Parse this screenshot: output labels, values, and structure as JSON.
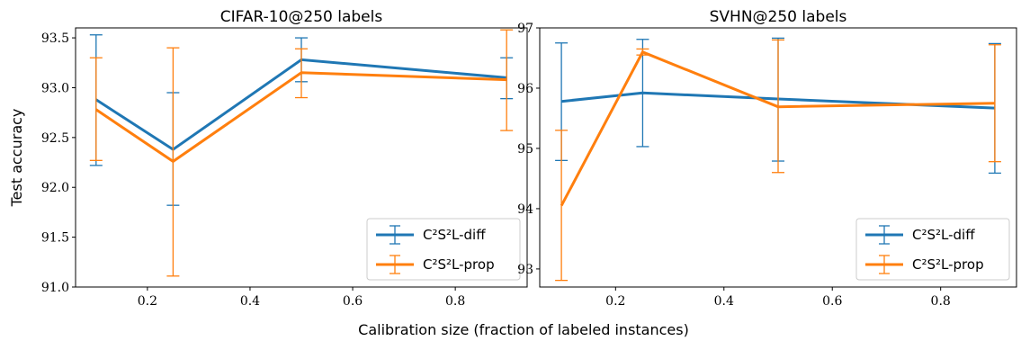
{
  "figure": {
    "xlabel": "Calibration size (fraction of labeled instances)",
    "ylabel": "Test accuracy"
  },
  "colors": {
    "diff": "#1f77b4",
    "prop": "#ff7f0e"
  },
  "chart_data": [
    {
      "type": "line",
      "title": "CIFAR-10@250 labels",
      "ylabel": "Test accuracy",
      "xlim": [
        0.06,
        0.94
      ],
      "ylim": [
        91.0,
        93.6
      ],
      "xticks": [
        0.2,
        0.4,
        0.6,
        0.8
      ],
      "xtick_labels": [
        "0.2",
        "0.4",
        "0.6",
        "0.8"
      ],
      "yticks": [
        91.0,
        91.5,
        92.0,
        92.5,
        93.0,
        93.5
      ],
      "ytick_labels": [
        "91.0",
        "91.5",
        "92.0",
        "92.5",
        "93.0",
        "93.5"
      ],
      "legend": "lower-right",
      "series": [
        {
          "name": "C²S²L-diff",
          "color": "#1f77b4",
          "x": [
            0.1,
            0.25,
            0.5,
            0.9
          ],
          "y": [
            92.88,
            92.38,
            93.28,
            93.1
          ],
          "err_low": [
            92.22,
            91.82,
            93.06,
            92.89
          ],
          "err_high": [
            93.53,
            92.95,
            93.5,
            93.3
          ]
        },
        {
          "name": "C²S²L-prop",
          "color": "#ff7f0e",
          "x": [
            0.1,
            0.25,
            0.5,
            0.9
          ],
          "y": [
            92.78,
            92.26,
            93.15,
            93.08
          ],
          "err_low": [
            92.27,
            91.11,
            92.9,
            92.57
          ],
          "err_high": [
            93.3,
            93.4,
            93.39,
            93.58
          ]
        }
      ]
    },
    {
      "type": "line",
      "title": "SVHN@250 labels",
      "xlim": [
        0.06,
        0.94
      ],
      "ylim": [
        92.7,
        97.0
      ],
      "xticks": [
        0.2,
        0.4,
        0.6,
        0.8
      ],
      "xtick_labels": [
        "0.2",
        "0.4",
        "0.6",
        "0.8"
      ],
      "yticks": [
        93,
        94,
        95,
        96,
        97
      ],
      "ytick_labels": [
        "93",
        "94",
        "95",
        "96",
        "97"
      ],
      "legend": "lower-right",
      "series": [
        {
          "name": "C²S²L-diff",
          "color": "#1f77b4",
          "x": [
            0.1,
            0.25,
            0.5,
            0.9
          ],
          "y": [
            95.78,
            95.92,
            95.82,
            95.67
          ],
          "err_low": [
            94.8,
            95.03,
            94.79,
            94.59
          ],
          "err_high": [
            96.75,
            96.81,
            96.83,
            96.74
          ]
        },
        {
          "name": "C²S²L-prop",
          "color": "#ff7f0e",
          "x": [
            0.1,
            0.25,
            0.5,
            0.9
          ],
          "y": [
            94.05,
            96.6,
            95.69,
            95.75
          ],
          "err_low": [
            92.81,
            96.55,
            94.6,
            94.78
          ],
          "err_high": [
            95.3,
            96.65,
            96.8,
            96.72
          ]
        }
      ]
    }
  ]
}
